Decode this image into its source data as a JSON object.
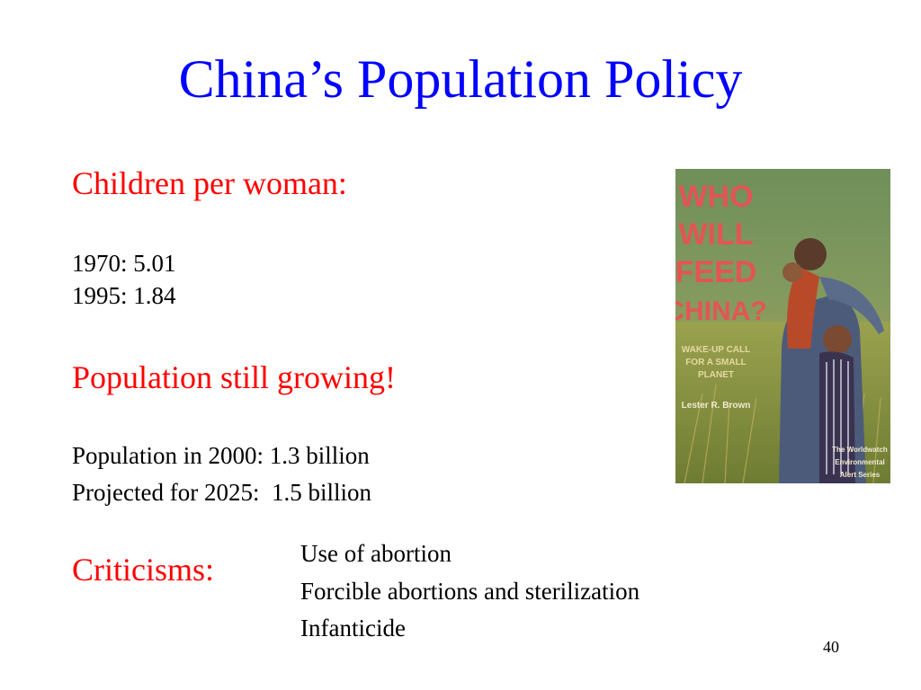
{
  "slide": {
    "title": "China’s Population Policy",
    "children_heading": "Children per woman:",
    "fertility": [
      {
        "text": "1970: 5.01"
      },
      {
        "text": "1995: 1.84"
      }
    ],
    "growth_heading": "Population still growing!",
    "population": [
      {
        "text": "Population in 2000: 1.3 billion"
      },
      {
        "text": "Projected for 2025:  1.5 billion"
      }
    ],
    "criticisms_heading": "Criticisms:",
    "criticisms": [
      {
        "text": "Use of abortion"
      },
      {
        "text": "Forcible abortions and sterilization"
      },
      {
        "text": "Infanticide"
      }
    ],
    "page_number": "40"
  },
  "book_cover": {
    "title_lines": [
      "WHO",
      "WILL",
      "FEED",
      "CHINA?"
    ],
    "subtitle_lines": [
      "WAKE-UP CALL",
      "FOR A SMALL",
      "PLANET"
    ],
    "author": "Lester R. Brown",
    "series_lines": [
      "The Worldwatch",
      "Environmental",
      "Alert Series"
    ]
  },
  "colors": {
    "title": "#0000ff",
    "heading": "#ff0000",
    "body": "#000000",
    "cover_text": "#e25555"
  }
}
